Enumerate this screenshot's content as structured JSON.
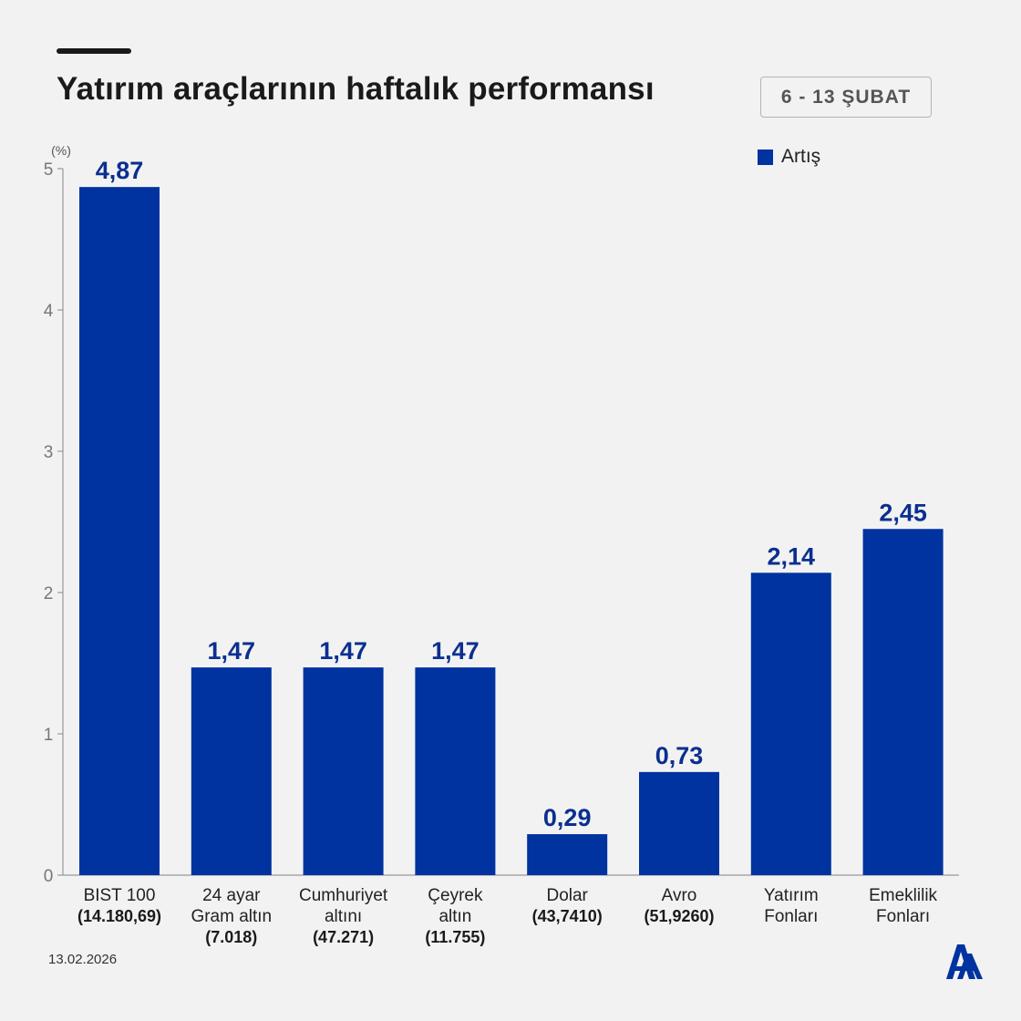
{
  "title": "Yatırım araçlarının haftalık performansı",
  "date_range": "6 - 13 ŞUBAT",
  "footer_date": "13.02.2026",
  "logo": "aa-logo-icon",
  "colors": {
    "bar": "#0032a0",
    "value_label": "#0a2f8f",
    "background": "#f2f2f2",
    "axis": "#999999"
  },
  "chart_data": {
    "type": "bar",
    "title": "Yatırım araçlarının haftalık performansı",
    "ylabel": "(%)",
    "xlabel": "",
    "ylim": [
      0,
      5
    ],
    "yticks": [
      0,
      1,
      2,
      3,
      4,
      5
    ],
    "grid": false,
    "legend": {
      "position": "top-right",
      "entries": [
        "Artış"
      ]
    },
    "categories": [
      [
        "BIST 100",
        "(14.180,69)"
      ],
      [
        "24 ayar",
        "Gram altın",
        "(7.018)"
      ],
      [
        "Cumhuriyet",
        "altını",
        "(47.271)"
      ],
      [
        "Çeyrek",
        "altın",
        "(11.755)"
      ],
      [
        "Dolar",
        "(43,7410)"
      ],
      [
        "Avro",
        "(51,9260)"
      ],
      [
        "Yatırım",
        "Fonları"
      ],
      [
        "Emeklilik",
        "Fonları"
      ]
    ],
    "series": [
      {
        "name": "Artış",
        "values": [
          4.87,
          1.47,
          1.47,
          1.47,
          0.29,
          0.73,
          2.14,
          2.45
        ],
        "labels": [
          "4,87",
          "1,47",
          "1,47",
          "1,47",
          "0,29",
          "0,73",
          "2,14",
          "2,45"
        ]
      }
    ]
  }
}
